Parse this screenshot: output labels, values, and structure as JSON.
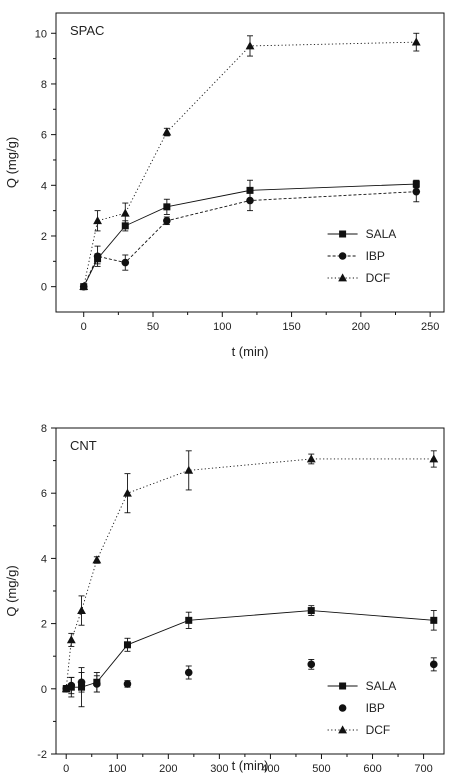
{
  "chart_data": [
    {
      "type": "line",
      "panel_label": "SPAC",
      "xlabel": "t (min)",
      "ylabel": "Q (mg/g)",
      "xlim": [
        -20,
        260
      ],
      "ylim": [
        -1,
        10.8
      ],
      "xticks": [
        0,
        50,
        100,
        150,
        200,
        250
      ],
      "yticks": [
        0,
        2,
        4,
        6,
        8,
        10
      ],
      "legend_position": "bottom-right",
      "series": [
        {
          "name": "SALA",
          "marker": "square",
          "dash": "solid",
          "points": [
            {
              "x": 0,
              "y": 0.0,
              "err": 0.05
            },
            {
              "x": 10,
              "y": 1.1,
              "err": 0.2
            },
            {
              "x": 30,
              "y": 2.4,
              "err": 0.2
            },
            {
              "x": 60,
              "y": 3.15,
              "err": 0.3
            },
            {
              "x": 120,
              "y": 3.8,
              "err": 0.4
            },
            {
              "x": 240,
              "y": 4.05,
              "err": 0.15
            }
          ]
        },
        {
          "name": "IBP",
          "marker": "circle",
          "dash": "dash",
          "points": [
            {
              "x": 0,
              "y": 0.0,
              "err": 0.05
            },
            {
              "x": 10,
              "y": 1.2,
              "err": 0.4
            },
            {
              "x": 30,
              "y": 0.95,
              "err": 0.3
            },
            {
              "x": 60,
              "y": 2.6,
              "err": 0.15
            },
            {
              "x": 120,
              "y": 3.4,
              "err": 0.4
            },
            {
              "x": 240,
              "y": 3.75,
              "err": 0.4
            }
          ]
        },
        {
          "name": "DCF",
          "marker": "triangle",
          "dash": "dot",
          "points": [
            {
              "x": 0,
              "y": 0.0,
              "err": 0.05
            },
            {
              "x": 10,
              "y": 2.6,
              "err": 0.4
            },
            {
              "x": 30,
              "y": 2.9,
              "err": 0.4
            },
            {
              "x": 60,
              "y": 6.1,
              "err": 0.15
            },
            {
              "x": 120,
              "y": 9.5,
              "err": 0.4
            },
            {
              "x": 240,
              "y": 9.65,
              "err": 0.35
            }
          ]
        }
      ]
    },
    {
      "type": "line",
      "panel_label": "CNT",
      "xlabel": "t (min)",
      "ylabel": "Q (mg/g)",
      "xlim": [
        -20,
        740
      ],
      "ylim": [
        -2,
        8
      ],
      "xticks": [
        0,
        100,
        200,
        300,
        400,
        500,
        600,
        700
      ],
      "yticks": [
        -2,
        0,
        2,
        4,
        6,
        8
      ],
      "legend_position": "bottom-right",
      "series": [
        {
          "name": "SALA",
          "marker": "square",
          "dash": "solid",
          "points": [
            {
              "x": 0,
              "y": 0.0,
              "err": 0.1
            },
            {
              "x": 10,
              "y": 0.05,
              "err": 0.3
            },
            {
              "x": 30,
              "y": 0.05,
              "err": 0.6
            },
            {
              "x": 60,
              "y": 0.2,
              "err": 0.3
            },
            {
              "x": 120,
              "y": 1.35,
              "err": 0.2
            },
            {
              "x": 240,
              "y": 2.1,
              "err": 0.25
            },
            {
              "x": 480,
              "y": 2.4,
              "err": 0.15
            },
            {
              "x": 720,
              "y": 2.1,
              "err": 0.3
            }
          ]
        },
        {
          "name": "IBP",
          "marker": "circle",
          "dash": "none",
          "points": [
            {
              "x": 0,
              "y": 0.0,
              "err": 0.1
            },
            {
              "x": 10,
              "y": 0.1,
              "err": 0.25
            },
            {
              "x": 30,
              "y": 0.2,
              "err": 0.3
            },
            {
              "x": 60,
              "y": 0.15,
              "err": 0.25
            },
            {
              "x": 120,
              "y": 0.15,
              "err": 0.1
            },
            {
              "x": 240,
              "y": 0.5,
              "err": 0.2
            },
            {
              "x": 480,
              "y": 0.75,
              "err": 0.15
            },
            {
              "x": 720,
              "y": 0.75,
              "err": 0.2
            }
          ]
        },
        {
          "name": "DCF",
          "marker": "triangle",
          "dash": "dot",
          "points": [
            {
              "x": 0,
              "y": 0.0,
              "err": 0.1
            },
            {
              "x": 10,
              "y": 1.5,
              "err": 0.2
            },
            {
              "x": 30,
              "y": 2.4,
              "err": 0.45
            },
            {
              "x": 60,
              "y": 3.95,
              "err": 0.1
            },
            {
              "x": 120,
              "y": 6.0,
              "err": 0.6
            },
            {
              "x": 240,
              "y": 6.7,
              "err": 0.6
            },
            {
              "x": 480,
              "y": 7.05,
              "err": 0.15
            },
            {
              "x": 720,
              "y": 7.05,
              "err": 0.25
            }
          ]
        }
      ]
    }
  ]
}
